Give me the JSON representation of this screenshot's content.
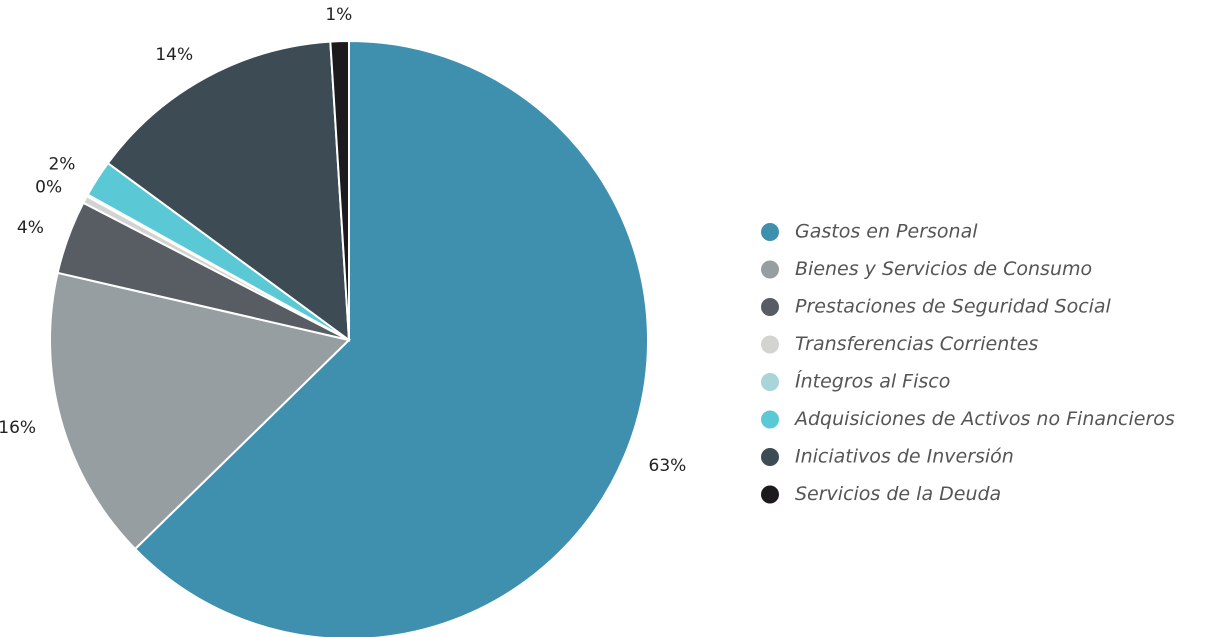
{
  "chart_data": {
    "type": "pie",
    "categories": [
      "Gastos en Personal",
      "Bienes y Servicios de Consumo",
      "Prestaciones de Seguridad Social",
      "Transferencias Corrientes",
      "Íntegros al Fisco",
      "Adquisiciones de Activos no Financieros",
      "Iniciativos de Inversión",
      "Servicios de la Deuda"
    ],
    "values": [
      63,
      16,
      4,
      0.4,
      0.1,
      2,
      14,
      1
    ],
    "value_labels": [
      "63%",
      "16%",
      "4%",
      "0%",
      null,
      "2%",
      "14%",
      "1%"
    ],
    "colors": [
      "#3f90ae",
      "#969ea1",
      "#575d62",
      "#d3d3d1",
      "#a9d4d8",
      "#5bc8d6",
      "#3d4b55",
      "#1c1a1d"
    ],
    "legend": "right"
  }
}
